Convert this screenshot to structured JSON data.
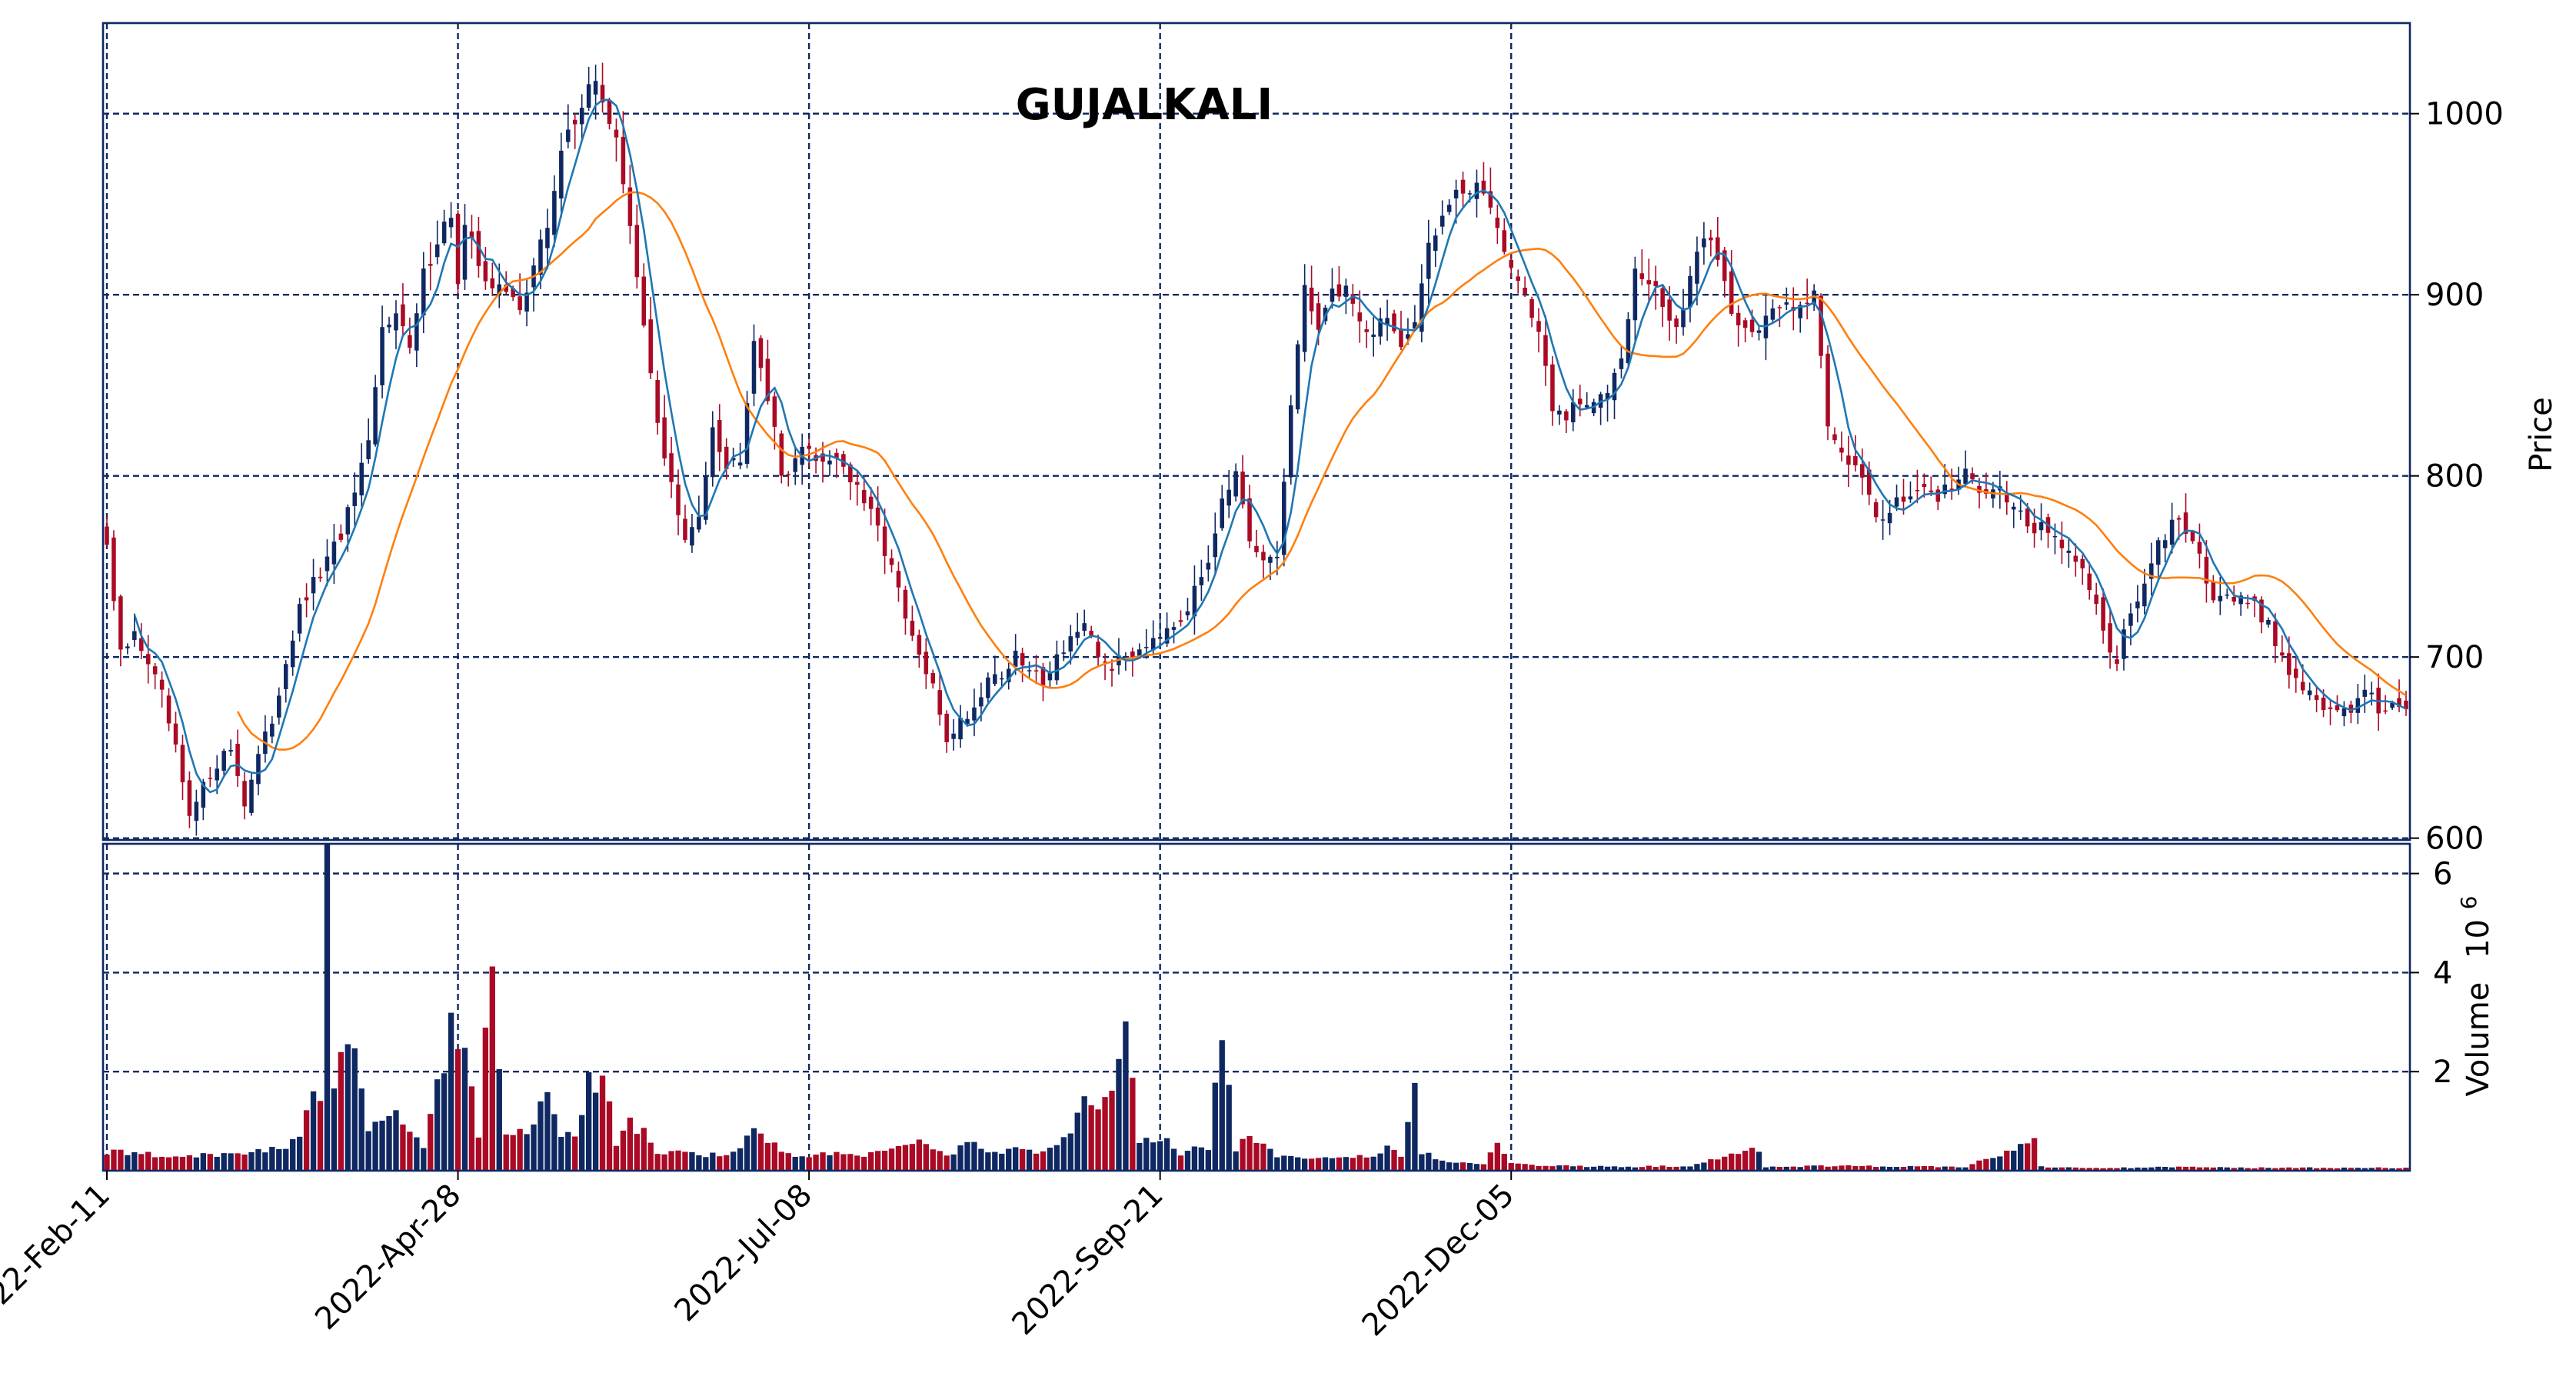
{
  "chart_data": {
    "type": "candlestick",
    "title": "GUJALKALI",
    "ylabel_price": "Price",
    "ylabel_volume": "Volume",
    "volume_exponent": "10",
    "volume_exponent_power": "6",
    "x_tick_labels": [
      "2022-Feb-11",
      "2022-Apr-28",
      "2022-Jul-08",
      "2022-Sep-21",
      "2022-Dec-05"
    ],
    "x_tick_indices": [
      0,
      51,
      102,
      153,
      204
    ],
    "price_ticks": [
      600,
      700,
      800,
      900,
      1000
    ],
    "price_ylim": [
      599,
      1050
    ],
    "volume_ticks": [
      2,
      4,
      6
    ],
    "volume_ylim": [
      0,
      6.6
    ],
    "grid": true,
    "legend": "none",
    "colors": {
      "up": "#0f2862",
      "down": "#aa0a25",
      "grid": "#0f2862",
      "ma_short": "#1f77b4",
      "ma_long": "#ff7f0e",
      "frame": "#0f2862"
    },
    "moving_averages": [
      5,
      20
    ],
    "close_anchors": [
      [
        0,
        762
      ],
      [
        2,
        700
      ],
      [
        4,
        712
      ],
      [
        6,
        698
      ],
      [
        8,
        678
      ],
      [
        10,
        648
      ],
      [
        12,
        610
      ],
      [
        14,
        628
      ],
      [
        16,
        642
      ],
      [
        18,
        650
      ],
      [
        20,
        620
      ],
      [
        22,
        645
      ],
      [
        24,
        665
      ],
      [
        26,
        698
      ],
      [
        28,
        725
      ],
      [
        30,
        740
      ],
      [
        32,
        752
      ],
      [
        34,
        768
      ],
      [
        36,
        790
      ],
      [
        38,
        815
      ],
      [
        40,
        880
      ],
      [
        42,
        895
      ],
      [
        44,
        868
      ],
      [
        46,
        910
      ],
      [
        48,
        932
      ],
      [
        50,
        945
      ],
      [
        51,
        905
      ],
      [
        52,
        935
      ],
      [
        54,
        918
      ],
      [
        56,
        905
      ],
      [
        58,
        900
      ],
      [
        60,
        895
      ],
      [
        62,
        915
      ],
      [
        64,
        938
      ],
      [
        66,
        980
      ],
      [
        68,
        995
      ],
      [
        70,
        1020
      ],
      [
        72,
        1005
      ],
      [
        74,
        990
      ],
      [
        76,
        935
      ],
      [
        78,
        880
      ],
      [
        80,
        830
      ],
      [
        82,
        795
      ],
      [
        84,
        762
      ],
      [
        86,
        778
      ],
      [
        88,
        830
      ],
      [
        90,
        805
      ],
      [
        92,
        812
      ],
      [
        94,
        878
      ],
      [
        96,
        845
      ],
      [
        98,
        800
      ],
      [
        100,
        810
      ],
      [
        102,
        815
      ],
      [
        104,
        808
      ],
      [
        106,
        812
      ],
      [
        108,
        798
      ],
      [
        110,
        785
      ],
      [
        112,
        770
      ],
      [
        114,
        750
      ],
      [
        116,
        720
      ],
      [
        118,
        700
      ],
      [
        120,
        682
      ],
      [
        122,
        655
      ],
      [
        124,
        665
      ],
      [
        126,
        672
      ],
      [
        128,
        690
      ],
      [
        130,
        690
      ],
      [
        132,
        700
      ],
      [
        134,
        692
      ],
      [
        136,
        688
      ],
      [
        138,
        700
      ],
      [
        140,
        712
      ],
      [
        142,
        715
      ],
      [
        144,
        700
      ],
      [
        146,
        695
      ],
      [
        148,
        700
      ],
      [
        150,
        705
      ],
      [
        152,
        712
      ],
      [
        154,
        718
      ],
      [
        156,
        722
      ],
      [
        158,
        735
      ],
      [
        160,
        755
      ],
      [
        162,
        790
      ],
      [
        164,
        800
      ],
      [
        166,
        760
      ],
      [
        168,
        752
      ],
      [
        170,
        755
      ],
      [
        172,
        840
      ],
      [
        174,
        900
      ],
      [
        176,
        885
      ],
      [
        178,
        900
      ],
      [
        180,
        905
      ],
      [
        182,
        885
      ],
      [
        184,
        880
      ],
      [
        186,
        890
      ],
      [
        188,
        870
      ],
      [
        190,
        880
      ],
      [
        192,
        930
      ],
      [
        194,
        945
      ],
      [
        196,
        960
      ],
      [
        198,
        955
      ],
      [
        200,
        958
      ],
      [
        202,
        940
      ],
      [
        204,
        915
      ],
      [
        206,
        900
      ],
      [
        208,
        880
      ],
      [
        210,
        835
      ],
      [
        212,
        832
      ],
      [
        214,
        840
      ],
      [
        216,
        838
      ],
      [
        218,
        850
      ],
      [
        220,
        870
      ],
      [
        222,
        912
      ],
      [
        224,
        906
      ],
      [
        226,
        895
      ],
      [
        228,
        882
      ],
      [
        230,
        905
      ],
      [
        232,
        935
      ],
      [
        234,
        922
      ],
      [
        236,
        890
      ],
      [
        238,
        885
      ],
      [
        240,
        880
      ],
      [
        242,
        890
      ],
      [
        244,
        895
      ],
      [
        246,
        898
      ],
      [
        248,
        900
      ],
      [
        250,
        830
      ],
      [
        252,
        815
      ],
      [
        254,
        805
      ],
      [
        256,
        785
      ],
      [
        258,
        775
      ],
      [
        260,
        790
      ],
      [
        262,
        785
      ],
      [
        264,
        795
      ],
      [
        266,
        790
      ],
      [
        268,
        795
      ],
      [
        270,
        800
      ],
      [
        272,
        792
      ],
      [
        274,
        795
      ],
      [
        276,
        790
      ],
      [
        278,
        780
      ],
      [
        280,
        770
      ],
      [
        282,
        770
      ],
      [
        284,
        762
      ],
      [
        286,
        750
      ],
      [
        288,
        740
      ],
      [
        290,
        712
      ],
      [
        292,
        700
      ],
      [
        294,
        725
      ],
      [
        296,
        740
      ],
      [
        298,
        760
      ],
      [
        300,
        775
      ],
      [
        302,
        768
      ],
      [
        304,
        755
      ],
      [
        306,
        735
      ],
      [
        308,
        735
      ],
      [
        310,
        732
      ],
      [
        312,
        728
      ],
      [
        314,
        718
      ],
      [
        316,
        700
      ],
      [
        318,
        688
      ],
      [
        320,
        680
      ],
      [
        322,
        672
      ],
      [
        324,
        668
      ],
      [
        326,
        670
      ],
      [
        328,
        685
      ],
      [
        330,
        670
      ],
      [
        332,
        676
      ],
      [
        334,
        670
      ]
    ],
    "volume_anchors": [
      [
        0,
        0.4
      ],
      [
        10,
        0.3
      ],
      [
        20,
        0.35
      ],
      [
        26,
        0.55
      ],
      [
        28,
        0.8
      ],
      [
        30,
        1.9
      ],
      [
        31,
        1.5
      ],
      [
        32,
        6.45
      ],
      [
        33,
        1.8
      ],
      [
        35,
        2.6
      ],
      [
        36,
        2.8
      ],
      [
        38,
        0.9
      ],
      [
        42,
        1.1
      ],
      [
        46,
        0.55
      ],
      [
        50,
        2.8
      ],
      [
        51,
        2.9
      ],
      [
        54,
        0.8
      ],
      [
        56,
        4.9
      ],
      [
        57,
        1.85
      ],
      [
        58,
        0.8
      ],
      [
        62,
        0.9
      ],
      [
        64,
        1.6
      ],
      [
        66,
        0.8
      ],
      [
        68,
        0.7
      ],
      [
        70,
        1.8
      ],
      [
        71,
        1.6
      ],
      [
        72,
        2.1
      ],
      [
        74,
        0.6
      ],
      [
        76,
        1.0
      ],
      [
        78,
        0.8
      ],
      [
        80,
        0.4
      ],
      [
        90,
        0.3
      ],
      [
        94,
        0.75
      ],
      [
        100,
        0.3
      ],
      [
        104,
        0.35
      ],
      [
        110,
        0.3
      ],
      [
        114,
        0.4
      ],
      [
        118,
        0.6
      ],
      [
        122,
        0.3
      ],
      [
        126,
        0.65
      ],
      [
        128,
        0.35
      ],
      [
        132,
        0.45
      ],
      [
        136,
        0.35
      ],
      [
        138,
        0.6
      ],
      [
        140,
        0.75
      ],
      [
        142,
        1.45
      ],
      [
        144,
        1.25
      ],
      [
        146,
        1.65
      ],
      [
        148,
        3.5
      ],
      [
        149,
        1.7
      ],
      [
        150,
        0.7
      ],
      [
        152,
        0.5
      ],
      [
        154,
        0.6
      ],
      [
        156,
        0.3
      ],
      [
        158,
        0.5
      ],
      [
        160,
        0.4
      ],
      [
        162,
        2.7
      ],
      [
        163,
        1.6
      ],
      [
        164,
        0.45
      ],
      [
        166,
        0.8
      ],
      [
        168,
        0.5
      ],
      [
        170,
        0.3
      ],
      [
        176,
        0.25
      ],
      [
        180,
        0.3
      ],
      [
        184,
        0.3
      ],
      [
        186,
        0.5
      ],
      [
        188,
        0.3
      ],
      [
        190,
        1.95
      ],
      [
        191,
        0.3
      ],
      [
        192,
        0.35
      ],
      [
        194,
        0.2
      ],
      [
        200,
        0.15
      ],
      [
        202,
        0.55
      ],
      [
        204,
        0.15
      ],
      [
        210,
        0.1
      ],
      [
        220,
        0.08
      ],
      [
        230,
        0.1
      ],
      [
        240,
        0.45
      ],
      [
        241,
        0.08
      ],
      [
        250,
        0.1
      ],
      [
        270,
        0.08
      ],
      [
        280,
        0.6
      ],
      [
        281,
        0.08
      ],
      [
        290,
        0.05
      ],
      [
        300,
        0.08
      ],
      [
        310,
        0.06
      ],
      [
        334,
        0.06
      ]
    ],
    "n_days": 335
  }
}
